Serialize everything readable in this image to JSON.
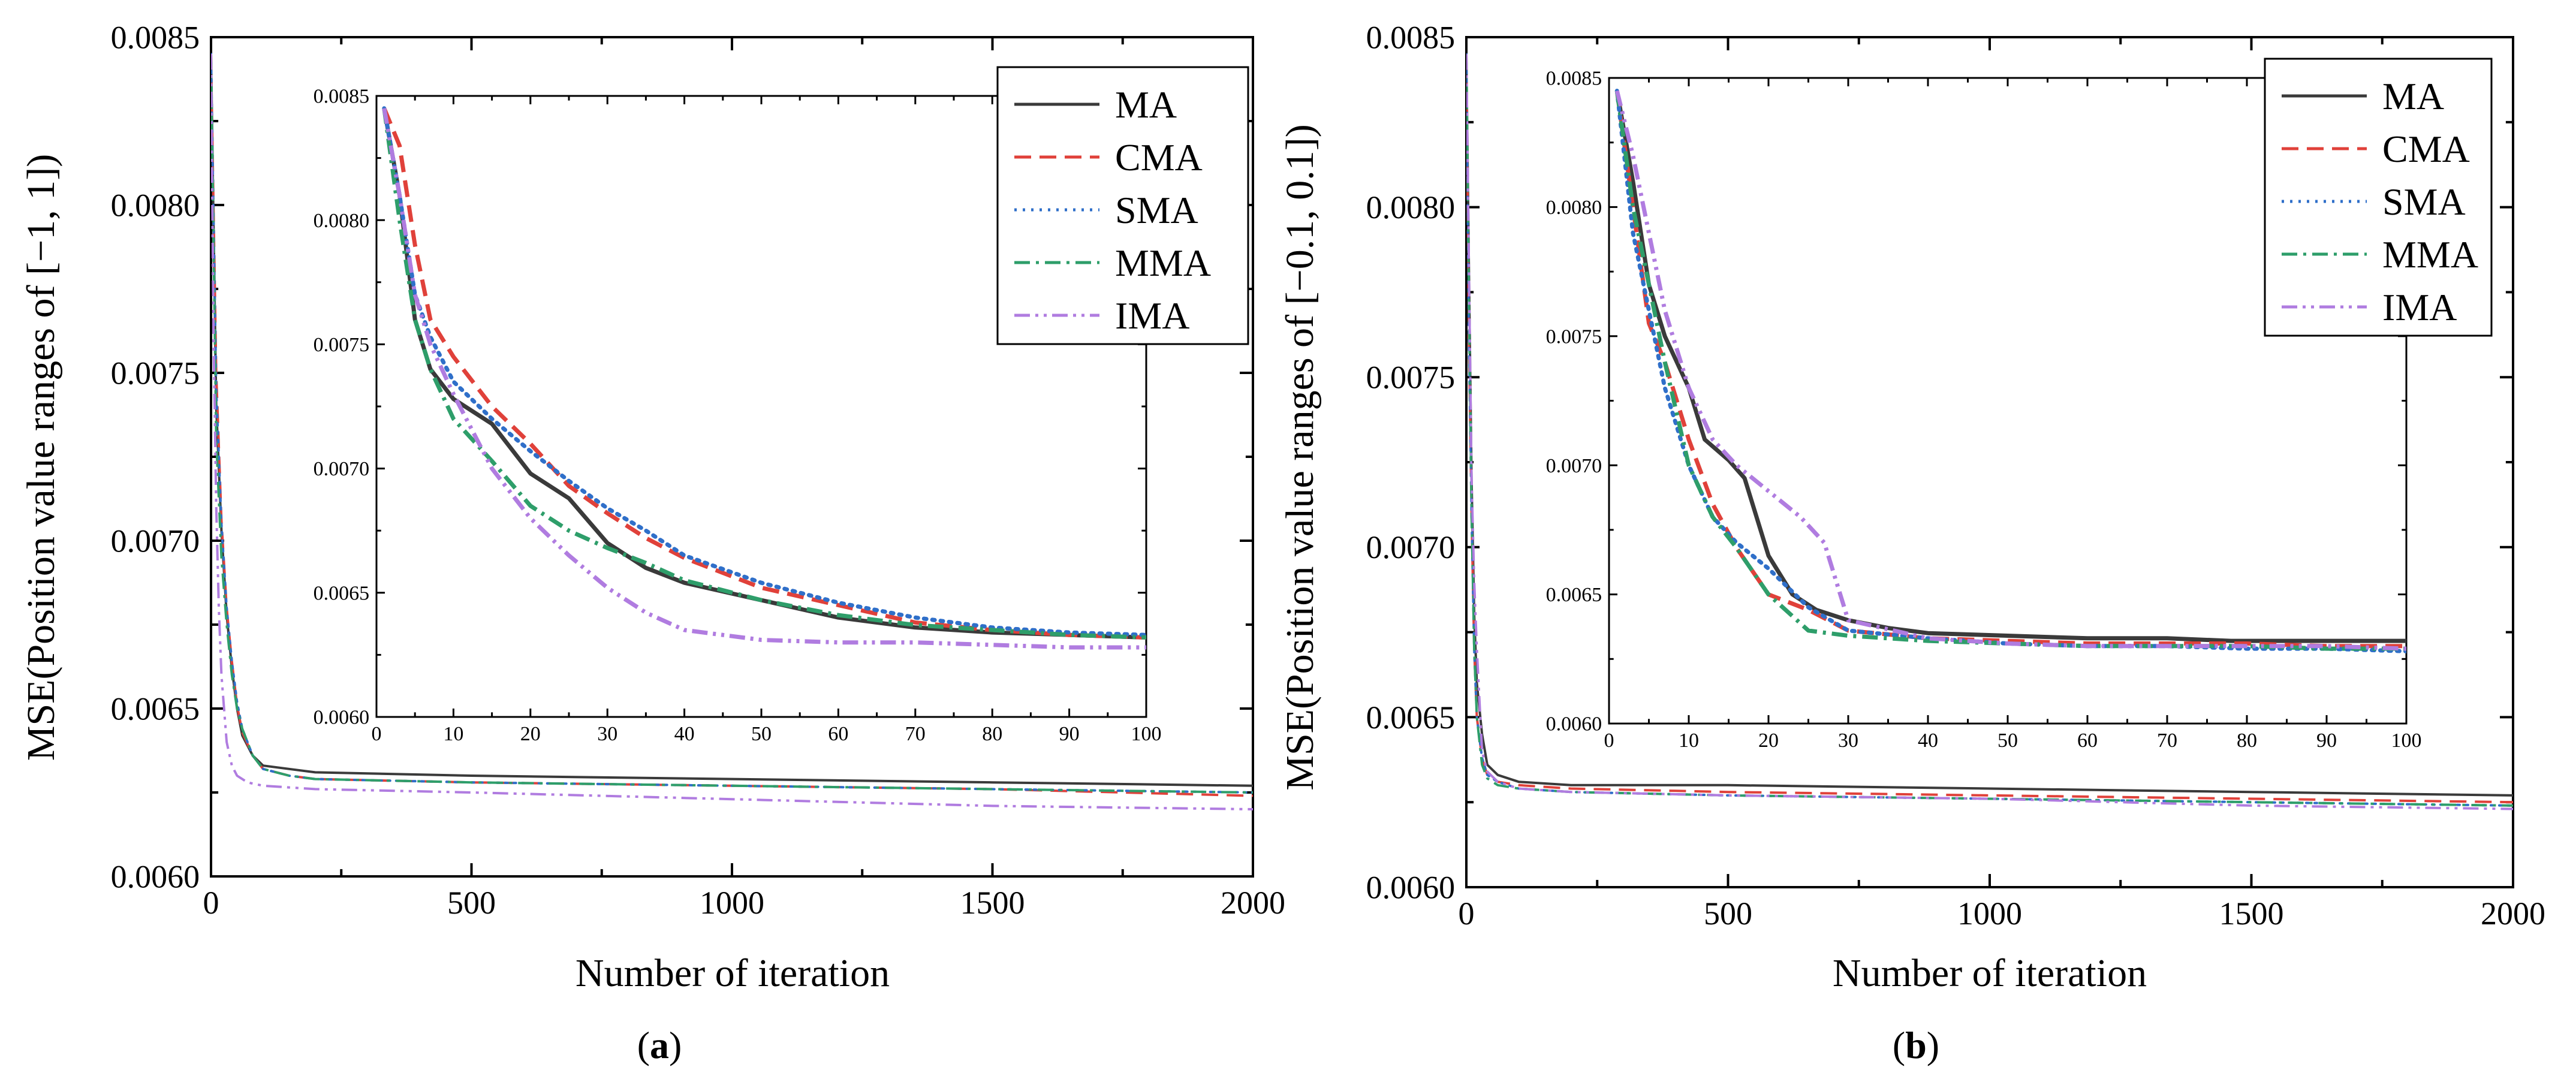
{
  "chart_data": [
    {
      "type": "line",
      "panel_label": "a",
      "xlabel": "Number of iteration",
      "ylabel": "MSE(Position value ranges of [−1, 1])",
      "xlim": [
        0,
        2000
      ],
      "ylim": [
        0.006,
        0.0085
      ],
      "xticks": [
        "0",
        "500",
        "1000",
        "1500",
        "2000"
      ],
      "yticks": [
        "0.0060",
        "0.0065",
        "0.0070",
        "0.0075",
        "0.0080",
        "0.0085"
      ],
      "legend": {
        "position": "top-right",
        "entries": [
          "MA",
          "CMA",
          "SMA",
          "MMA",
          "IMA"
        ]
      },
      "series": [
        {
          "name": "MA",
          "color": "#3a3a3a",
          "dash": "solid",
          "x": [
            0,
            10,
            20,
            30,
            40,
            50,
            60,
            80,
            100,
            150,
            200,
            500,
            1000,
            1500,
            2000
          ],
          "y": [
            0.00845,
            0.0074,
            0.00703,
            0.00678,
            0.00662,
            0.0065,
            0.00642,
            0.00636,
            0.00633,
            0.00632,
            0.00631,
            0.0063,
            0.00629,
            0.00628,
            0.00627
          ]
        },
        {
          "name": "CMA",
          "color": "#e0413a",
          "dash": "long-dash",
          "x": [
            0,
            10,
            20,
            30,
            40,
            50,
            60,
            80,
            100,
            150,
            200,
            500,
            1000,
            1500,
            2000
          ],
          "y": [
            0.00845,
            0.0075,
            0.00706,
            0.0068,
            0.00664,
            0.00651,
            0.00643,
            0.00636,
            0.00632,
            0.0063,
            0.00629,
            0.00628,
            0.00627,
            0.00626,
            0.00624
          ]
        },
        {
          "name": "SMA",
          "color": "#2f6fc9",
          "dash": "dotted",
          "x": [
            0,
            10,
            20,
            30,
            40,
            50,
            60,
            80,
            100,
            150,
            200,
            500,
            1000,
            1500,
            2000
          ],
          "y": [
            0.00845,
            0.00745,
            0.00705,
            0.0068,
            0.00664,
            0.00652,
            0.00644,
            0.00636,
            0.00632,
            0.0063,
            0.00629,
            0.00628,
            0.00627,
            0.00626,
            0.00625
          ]
        },
        {
          "name": "MMA",
          "color": "#2e9e6a",
          "dash": "dash-dot",
          "x": [
            0,
            10,
            20,
            30,
            40,
            50,
            60,
            80,
            100,
            150,
            200,
            500,
            1000,
            1500,
            2000
          ],
          "y": [
            0.00845,
            0.0073,
            0.00695,
            0.00675,
            0.0066,
            0.0065,
            0.00644,
            0.00636,
            0.00632,
            0.0063,
            0.00629,
            0.00628,
            0.00627,
            0.00626,
            0.00625
          ]
        },
        {
          "name": "IMA",
          "color": "#b07ce0",
          "dash": "dash-dot-dot",
          "x": [
            0,
            5,
            10,
            15,
            20,
            30,
            40,
            50,
            70,
            100,
            200,
            500,
            1000,
            1500,
            2000
          ],
          "y": [
            0.00845,
            0.0076,
            0.0071,
            0.0068,
            0.0066,
            0.0064,
            0.00633,
            0.0063,
            0.00628,
            0.00627,
            0.00626,
            0.00625,
            0.00623,
            0.00621,
            0.0062
          ]
        }
      ],
      "inset": {
        "xlim": [
          0,
          100
        ],
        "ylim": [
          0.006,
          0.0085
        ],
        "xticks": [
          "0",
          "10",
          "20",
          "30",
          "40",
          "50",
          "60",
          "70",
          "80",
          "90",
          "100"
        ],
        "yticks": [
          "0.0060",
          "0.0065",
          "0.0070",
          "0.0075",
          "0.0080",
          "0.0085"
        ],
        "series": [
          {
            "name": "MA",
            "x": [
              1,
              3,
              5,
              7,
              10,
              15,
              20,
              25,
              30,
              35,
              40,
              50,
              60,
              70,
              80,
              90,
              100
            ],
            "y": [
              0.00845,
              0.0081,
              0.0076,
              0.0074,
              0.00728,
              0.00718,
              0.00698,
              0.00688,
              0.0067,
              0.0066,
              0.00654,
              0.00647,
              0.0064,
              0.00636,
              0.00634,
              0.00633,
              0.00632
            ]
          },
          {
            "name": "CMA",
            "x": [
              1,
              3,
              5,
              7,
              10,
              15,
              20,
              25,
              30,
              35,
              40,
              50,
              60,
              70,
              80,
              90,
              100
            ],
            "y": [
              0.00845,
              0.0083,
              0.0079,
              0.0076,
              0.00745,
              0.00725,
              0.0071,
              0.00693,
              0.00682,
              0.00672,
              0.00664,
              0.00652,
              0.00645,
              0.00638,
              0.00635,
              0.00633,
              0.00632
            ]
          },
          {
            "name": "SMA",
            "x": [
              1,
              3,
              5,
              7,
              10,
              15,
              20,
              25,
              30,
              35,
              40,
              50,
              60,
              70,
              80,
              90,
              100
            ],
            "y": [
              0.00845,
              0.0081,
              0.0077,
              0.00753,
              0.00735,
              0.0072,
              0.00707,
              0.00695,
              0.00684,
              0.00675,
              0.00665,
              0.00654,
              0.00646,
              0.0064,
              0.00636,
              0.00634,
              0.00633
            ]
          },
          {
            "name": "MMA",
            "x": [
              1,
              3,
              5,
              7,
              10,
              15,
              20,
              25,
              30,
              35,
              40,
              50,
              60,
              70,
              80,
              90,
              100
            ],
            "y": [
              0.00845,
              0.008,
              0.0076,
              0.0074,
              0.0072,
              0.00703,
              0.00685,
              0.00675,
              0.00668,
              0.00662,
              0.00655,
              0.00647,
              0.00641,
              0.00637,
              0.00635,
              0.00633,
              0.00632
            ]
          },
          {
            "name": "IMA",
            "x": [
              1,
              3,
              5,
              7,
              10,
              15,
              20,
              25,
              30,
              35,
              40,
              50,
              60,
              70,
              80,
              90,
              100
            ],
            "y": [
              0.00845,
              0.0081,
              0.0077,
              0.0075,
              0.0073,
              0.007,
              0.0068,
              0.00665,
              0.00652,
              0.00642,
              0.00635,
              0.00631,
              0.0063,
              0.0063,
              0.00629,
              0.00628,
              0.00628
            ]
          }
        ]
      }
    },
    {
      "type": "line",
      "panel_label": "b",
      "xlabel": "Number of iteration",
      "ylabel": "MSE(Position value ranges of [−0.1, 0.1])",
      "xlim": [
        0,
        2000
      ],
      "ylim": [
        0.006,
        0.0085
      ],
      "xticks": [
        "0",
        "500",
        "1000",
        "1500",
        "2000"
      ],
      "yticks": [
        "0.0060",
        "0.0065",
        "0.0070",
        "0.0075",
        "0.0080",
        "0.0085"
      ],
      "legend": {
        "position": "top-right",
        "entries": [
          "MA",
          "CMA",
          "SMA",
          "MMA",
          "IMA"
        ]
      },
      "series": [
        {
          "name": "MA",
          "color": "#3a3a3a",
          "dash": "solid",
          "x": [
            0,
            5,
            10,
            15,
            20,
            30,
            40,
            60,
            100,
            200,
            500,
            1000,
            1500,
            2000
          ],
          "y": [
            0.00845,
            0.0078,
            0.0072,
            0.0068,
            0.0066,
            0.00645,
            0.00636,
            0.00633,
            0.00631,
            0.0063,
            0.0063,
            0.00629,
            0.00628,
            0.00627
          ]
        },
        {
          "name": "CMA",
          "color": "#e0413a",
          "dash": "long-dash",
          "x": [
            0,
            5,
            10,
            15,
            20,
            30,
            40,
            60,
            100,
            200,
            500,
            1000,
            1500,
            2000
          ],
          "y": [
            0.00845,
            0.0076,
            0.0071,
            0.0067,
            0.0065,
            0.00638,
            0.00633,
            0.00631,
            0.0063,
            0.00629,
            0.00628,
            0.00627,
            0.00626,
            0.00625
          ]
        },
        {
          "name": "SMA",
          "color": "#2f6fc9",
          "dash": "dotted",
          "x": [
            0,
            5,
            10,
            15,
            20,
            30,
            40,
            60,
            100,
            200,
            500,
            1000,
            1500,
            2000
          ],
          "y": [
            0.00845,
            0.0076,
            0.0071,
            0.0067,
            0.0065,
            0.00638,
            0.00633,
            0.00631,
            0.00629,
            0.00628,
            0.00627,
            0.00626,
            0.00625,
            0.00624
          ]
        },
        {
          "name": "MMA",
          "color": "#2e9e6a",
          "dash": "dash-dot",
          "x": [
            0,
            5,
            10,
            15,
            20,
            30,
            40,
            60,
            100,
            200,
            500,
            1000,
            1500,
            2000
          ],
          "y": [
            0.00845,
            0.0077,
            0.0071,
            0.0067,
            0.0065,
            0.00636,
            0.00632,
            0.0063,
            0.00629,
            0.00628,
            0.00627,
            0.00626,
            0.00625,
            0.00624
          ]
        },
        {
          "name": "IMA",
          "color": "#b07ce0",
          "dash": "dash-dot-dot",
          "x": [
            0,
            5,
            10,
            15,
            20,
            30,
            40,
            60,
            100,
            200,
            500,
            1000,
            1500,
            2000
          ],
          "y": [
            0.00845,
            0.0078,
            0.0072,
            0.0069,
            0.0067,
            0.0064,
            0.00634,
            0.00631,
            0.00629,
            0.00628,
            0.00627,
            0.00626,
            0.00624,
            0.00623
          ]
        }
      ],
      "inset": {
        "xlim": [
          0,
          100
        ],
        "ylim": [
          0.006,
          0.0085
        ],
        "xticks": [
          "0",
          "10",
          "20",
          "30",
          "40",
          "50",
          "60",
          "70",
          "80",
          "90",
          "100"
        ],
        "yticks": [
          "0.0060",
          "0.0065",
          "0.0070",
          "0.0075",
          "0.0080",
          "0.0085"
        ],
        "series": [
          {
            "name": "MA",
            "x": [
              1,
              3,
              5,
              7,
              10,
              12,
              15,
              17,
              20,
              23,
              26,
              30,
              35,
              40,
              50,
              60,
              70,
              78,
              80,
              90,
              100
            ],
            "y": [
              0.00845,
              0.0081,
              0.0077,
              0.0075,
              0.0073,
              0.0071,
              0.00702,
              0.00695,
              0.00665,
              0.0065,
              0.00644,
              0.0064,
              0.00637,
              0.00635,
              0.00634,
              0.00633,
              0.00633,
              0.00632,
              0.00632,
              0.00632,
              0.00632
            ]
          },
          {
            "name": "CMA",
            "x": [
              1,
              3,
              5,
              7,
              10,
              13,
              16,
              20,
              25,
              30,
              40,
              50,
              60,
              70,
              80,
              90,
              100
            ],
            "y": [
              0.00845,
              0.008,
              0.00755,
              0.0074,
              0.0071,
              0.00685,
              0.00668,
              0.0065,
              0.00644,
              0.00636,
              0.00633,
              0.00632,
              0.00631,
              0.00631,
              0.00631,
              0.0063,
              0.0063
            ]
          },
          {
            "name": "SMA",
            "x": [
              1,
              3,
              5,
              7,
              10,
              13,
              16,
              20,
              25,
              30,
              40,
              50,
              60,
              70,
              80,
              90,
              100
            ],
            "y": [
              0.00845,
              0.0079,
              0.0076,
              0.0073,
              0.007,
              0.0068,
              0.0067,
              0.0066,
              0.00645,
              0.00636,
              0.00633,
              0.00631,
              0.0063,
              0.0063,
              0.00629,
              0.00629,
              0.00628
            ]
          },
          {
            "name": "MMA",
            "x": [
              1,
              3,
              5,
              7,
              10,
              13,
              16,
              20,
              25,
              30,
              40,
              50,
              60,
              70,
              80,
              90,
              100
            ],
            "y": [
              0.00845,
              0.008,
              0.0077,
              0.0074,
              0.007,
              0.0068,
              0.00668,
              0.0065,
              0.00636,
              0.00634,
              0.00632,
              0.00631,
              0.0063,
              0.0063,
              0.0063,
              0.00629,
              0.00629
            ]
          },
          {
            "name": "IMA",
            "x": [
              1,
              3,
              5,
              7,
              10,
              13,
              16,
              20,
              24,
              27,
              30,
              40,
              50,
              60,
              70,
              80,
              90,
              100
            ],
            "y": [
              0.00845,
              0.0082,
              0.0079,
              0.0076,
              0.0073,
              0.0071,
              0.007,
              0.0069,
              0.0068,
              0.0067,
              0.0064,
              0.00633,
              0.00631,
              0.0063,
              0.0063,
              0.0063,
              0.0063,
              0.00629
            ]
          }
        ]
      }
    }
  ]
}
